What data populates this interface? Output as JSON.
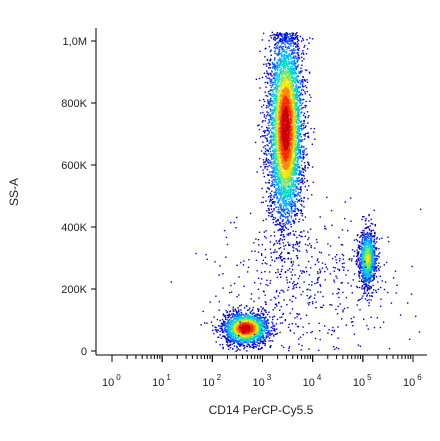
{
  "chart_data": {
    "type": "scatter",
    "plot_style": "flow-cytometry pseudocolor density dot plot",
    "xlabel": "CD14 PerCP-Cy5.5",
    "ylabel": "SS-A",
    "x_scale": "log",
    "xlim": [
      1,
      1000000
    ],
    "ylim": [
      -20000,
      1050000
    ],
    "x_ticks": [
      {
        "base": "10",
        "exp": "0",
        "value": 1
      },
      {
        "base": "10",
        "exp": "1",
        "value": 10
      },
      {
        "base": "10",
        "exp": "2",
        "value": 100
      },
      {
        "base": "10",
        "exp": "3",
        "value": 1000
      },
      {
        "base": "10",
        "exp": "4",
        "value": 10000
      },
      {
        "base": "10",
        "exp": "5",
        "value": 100000
      },
      {
        "base": "10",
        "exp": "6",
        "value": 1000000
      }
    ],
    "y_ticks": [
      {
        "label": "0",
        "value": 0
      },
      {
        "label": "200K",
        "value": 200000
      },
      {
        "label": "400K",
        "value": 400000
      },
      {
        "label": "600K",
        "value": 600000
      },
      {
        "label": "800K",
        "value": 800000
      },
      {
        "label": "1,0M",
        "value": 1000000
      }
    ],
    "grid": false,
    "colormap": [
      "#0000cc",
      "#0055ff",
      "#00b4ff",
      "#00e0c0",
      "#7fe65a",
      "#ffe600",
      "#ff8a00",
      "#ff2a00",
      "#cc0000"
    ],
    "populations": [
      {
        "x_center": 450,
        "y_center": 75000,
        "x_spread_decades": 0.22,
        "y_spread": 25000,
        "count": 2200
      },
      {
        "x_center": 2800,
        "y_center": 720000,
        "x_spread_decades": 0.17,
        "y_spread": 150000,
        "count": 5200
      },
      {
        "x_center": 120000,
        "y_center": 300000,
        "x_spread_decades": 0.09,
        "y_spread": 45000,
        "count": 1100
      },
      {
        "x_center": 8000,
        "y_center": 220000,
        "x_spread_decades": 0.9,
        "y_spread": 120000,
        "count": 500,
        "note": "sparse background events"
      }
    ]
  }
}
